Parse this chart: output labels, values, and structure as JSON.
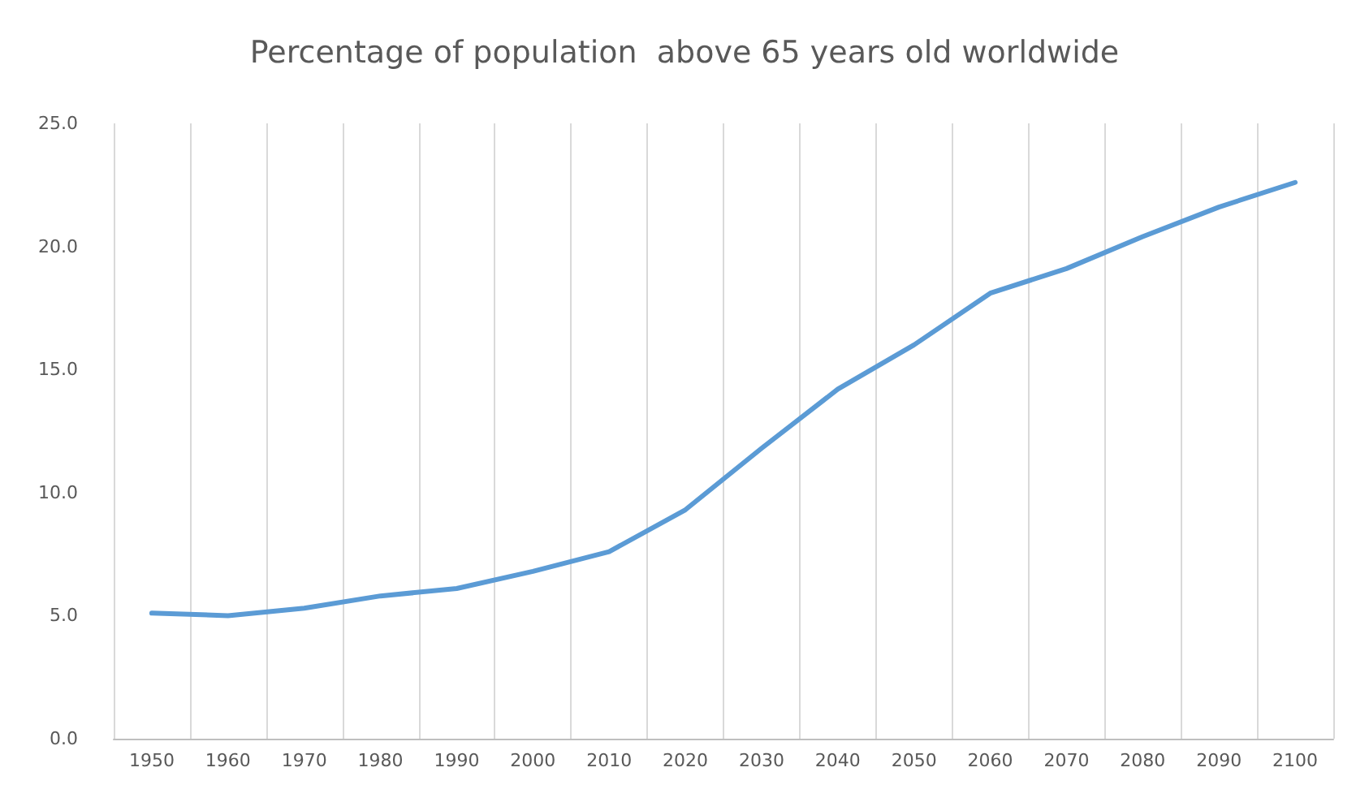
{
  "chart_data": {
    "type": "line",
    "title": "Percentage of population  above 65 years old worldwide",
    "categories": [
      "1950",
      "1960",
      "1970",
      "1980",
      "1990",
      "2000",
      "2010",
      "2020",
      "2030",
      "2040",
      "2050",
      "2060",
      "2070",
      "2080",
      "2090",
      "2100"
    ],
    "series": [
      {
        "color": "#5b9bd5",
        "values": [
          5.1,
          5.0,
          5.3,
          5.8,
          6.1,
          6.8,
          7.6,
          9.3,
          11.8,
          14.2,
          16.0,
          18.1,
          19.1,
          20.4,
          21.6,
          22.6
        ]
      }
    ],
    "ylim": [
      0,
      25
    ],
    "yticks": [
      {
        "value": 0,
        "label": "0.0"
      },
      {
        "value": 5,
        "label": "5.0"
      },
      {
        "value": 10,
        "label": "10.0"
      },
      {
        "value": 15,
        "label": "15.0"
      },
      {
        "value": 20,
        "label": "20.0"
      },
      {
        "value": 25,
        "label": "25.0"
      }
    ],
    "grid": "x",
    "marker": "none",
    "line_style": "solid"
  }
}
